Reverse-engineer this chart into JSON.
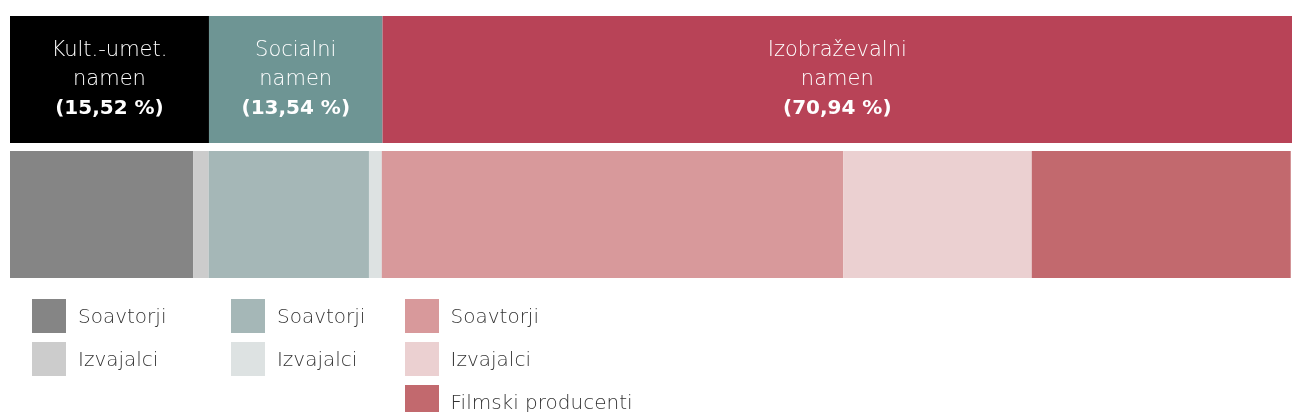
{
  "chart_data": {
    "type": "bar",
    "orientation": "horizontal",
    "stacked": true,
    "categories": [
      null,
      null
    ],
    "xlim": [
      0,
      100
    ],
    "tick_labels": false,
    "legend": "bottom",
    "series": [
      {
        "name": "Kult.-umet. namen",
        "color": "#000000",
        "values": [
          15.52,
          null
        ],
        "value_labels": [
          "(15,52 %)",
          null
        ]
      },
      {
        "name": "Socialni namen",
        "color": "#6e9594",
        "values": [
          13.54,
          null
        ],
        "value_labels": [
          "(13,54 %)",
          null
        ]
      },
      {
        "name": "Izobraževalni namen",
        "color": "#b84357",
        "values": [
          70.94,
          null
        ],
        "value_labels": [
          "(70,94 %)",
          null
        ]
      },
      {
        "name": "Soavtorji",
        "color": "#858585",
        "values": [
          null,
          14.3
        ]
      },
      {
        "name": "Izvajalci",
        "color": "#cccccc",
        "values": [
          null,
          1.2
        ]
      },
      {
        "name": "Soavtorji",
        "color": "#a5b7b7",
        "values": [
          null,
          12.5
        ]
      },
      {
        "name": "Izvajalci",
        "color": "#dde2e2",
        "values": [
          null,
          1.0
        ]
      },
      {
        "name": "Soavtorji",
        "color": "#d8999b",
        "values": [
          null,
          36.0
        ]
      },
      {
        "name": "Izvajalci",
        "color": "#ebd0d1",
        "values": [
          null,
          14.7
        ]
      },
      {
        "name": "Filmski producenti",
        "color": "#c2696e",
        "values": [
          null,
          20.2
        ]
      }
    ]
  }
}
